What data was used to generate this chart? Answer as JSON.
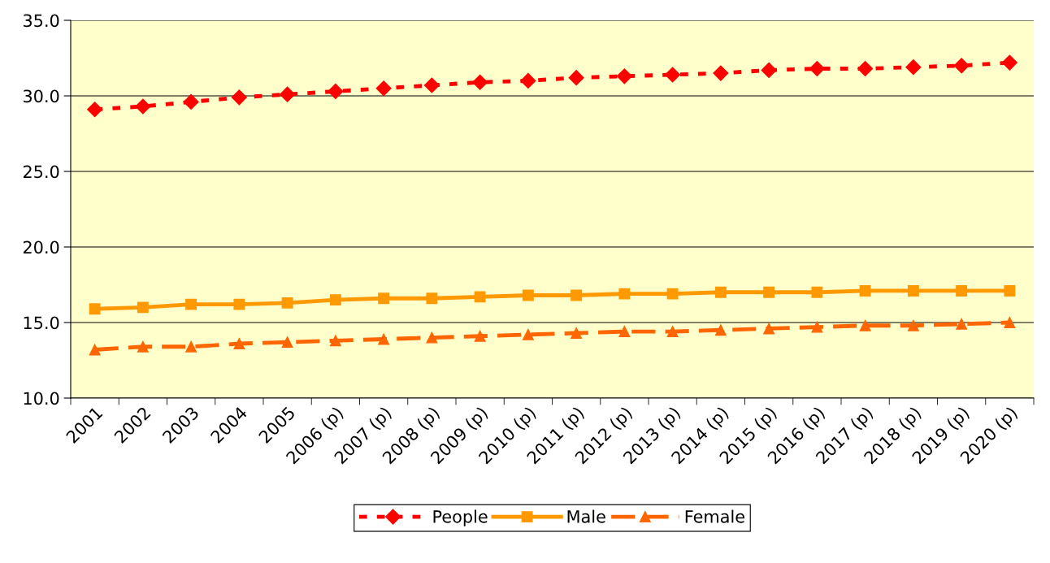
{
  "chart_data": {
    "type": "line",
    "categories": [
      "2001",
      "2002",
      "2003",
      "2004",
      "2005",
      "2006 (p)",
      "2007 (p)",
      "2008 (p)",
      "2009 (p)",
      "2010 (p)",
      "2011 (p)",
      "2012 (p)",
      "2013 (p)",
      "2014 (p)",
      "2015 (p)",
      "2016 (p)",
      "2017 (p)",
      "2018 (p)",
      "2019 (p)",
      "2020 (p)"
    ],
    "series": [
      {
        "name": "People",
        "color": "#ff0000",
        "marker": "diamond",
        "line_style": "dotted",
        "values": [
          29.1,
          29.3,
          29.6,
          29.9,
          30.1,
          30.3,
          30.5,
          30.7,
          30.9,
          31.0,
          31.2,
          31.3,
          31.4,
          31.5,
          31.7,
          31.8,
          31.8,
          31.9,
          32.0,
          32.2
        ]
      },
      {
        "name": "Male",
        "color": "#ff9900",
        "marker": "square",
        "line_style": "solid",
        "values": [
          15.9,
          16.0,
          16.2,
          16.2,
          16.3,
          16.5,
          16.6,
          16.6,
          16.7,
          16.8,
          16.8,
          16.9,
          16.9,
          17.0,
          17.0,
          17.0,
          17.1,
          17.1,
          17.1,
          17.1
        ]
      },
      {
        "name": "Female",
        "color": "#ff6600",
        "marker": "triangle",
        "line_style": "dashed",
        "values": [
          13.2,
          13.4,
          13.4,
          13.6,
          13.7,
          13.8,
          13.9,
          14.0,
          14.1,
          14.2,
          14.3,
          14.4,
          14.4,
          14.5,
          14.6,
          14.7,
          14.8,
          14.8,
          14.9,
          15.0
        ]
      }
    ],
    "ylim": [
      10,
      35
    ],
    "yticks": [
      {
        "value": 10,
        "label": "10.0"
      },
      {
        "value": 15,
        "label": "15.0"
      },
      {
        "value": 20,
        "label": "20.0"
      },
      {
        "value": 25,
        "label": "25.0"
      },
      {
        "value": 30,
        "label": "30.0"
      },
      {
        "value": 35,
        "label": "35.0"
      }
    ],
    "grid": "y",
    "legend": "bottom"
  }
}
